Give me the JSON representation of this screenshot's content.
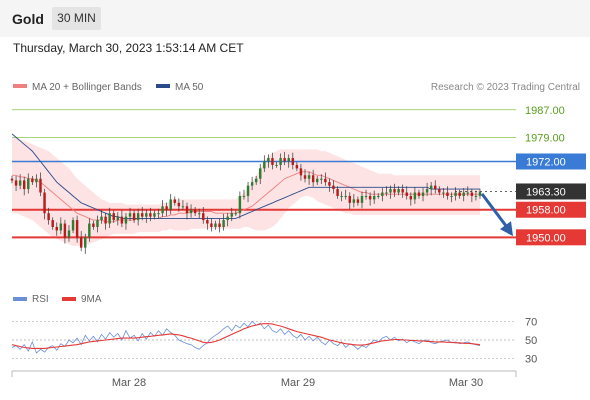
{
  "header": {
    "title": "Gold",
    "timeframe": "30 MIN",
    "datetime": "Thursday, March 30, 2023 1:53:14 AM CET"
  },
  "legend": {
    "ma20": "MA 20 + Bollinger Bands",
    "ma50": "MA 50",
    "research": "Research © 2023 Trading Central"
  },
  "colors": {
    "ma20": "#f08080",
    "ma50": "#2a4a8c",
    "band": "#fde0e0",
    "candle_up": "#2e7d32",
    "candle_down": "#b71c1c",
    "resistance": "#8bc34a",
    "pivot": "#3a7bd5",
    "support": "#e53935",
    "last_price": "#333333",
    "arrow": "#2f5fa6",
    "rsi": "#6a8fd8",
    "rsi_ma": "#e53935"
  },
  "chart_data": [
    {
      "type": "candlestick",
      "ylim": [
        1944,
        1991
      ],
      "x_axis_labels": [
        "Mar 28",
        "Mar 29",
        "Mar 30"
      ],
      "levels": [
        {
          "label": "1987.00",
          "value": 1987.0,
          "kind": "resistance"
        },
        {
          "label": "1979.00",
          "value": 1979.0,
          "kind": "resistance"
        },
        {
          "label": "1972.00",
          "value": 1972.0,
          "kind": "pivot"
        },
        {
          "label": "1963.30",
          "value": 1963.3,
          "kind": "last_price"
        },
        {
          "label": "1958.00",
          "value": 1958.0,
          "kind": "support"
        },
        {
          "label": "1950.00",
          "value": 1950.0,
          "kind": "support"
        }
      ],
      "close": [
        1966.5,
        1965,
        1966.5,
        1964,
        1967,
        1966,
        1967,
        1963,
        1957,
        1955,
        1953,
        1952,
        1954,
        1950,
        1952,
        1955,
        1950,
        1947,
        1950,
        1954,
        1953,
        1955,
        1956,
        1954,
        1957,
        1955,
        1956,
        1954,
        1956,
        1957,
        1955,
        1957,
        1956,
        1957,
        1956,
        1957,
        1957,
        1959,
        1958,
        1961,
        1960,
        1959,
        1959,
        1957,
        1958,
        1957,
        1957,
        1955,
        1954,
        1953,
        1954,
        1953,
        1955,
        1956,
        1957,
        1957,
        1962,
        1962,
        1965,
        1966,
        1967,
        1970,
        1972,
        1973,
        1971,
        1971,
        1973,
        1972,
        1973,
        1971,
        1970,
        1968,
        1967,
        1968,
        1966,
        1967,
        1967,
        1966,
        1965,
        1964,
        1962,
        1962,
        1962,
        1960,
        1961,
        1960,
        1962,
        1962,
        1961,
        1962,
        1962,
        1963,
        1963,
        1964,
        1963,
        1964,
        1963,
        1962,
        1961,
        1963,
        1962,
        1963,
        1964,
        1965,
        1964,
        1963,
        1963,
        1962,
        1962,
        1963,
        1962,
        1963,
        1963,
        1962,
        1962,
        1963.3
      ],
      "ma20": [
        1968,
        1968,
        1967.5,
        1967.5,
        1967,
        1967,
        1966.5,
        1966,
        1965,
        1964,
        1963,
        1962,
        1961,
        1960,
        1959,
        1958,
        1957,
        1956.5,
        1956,
        1955.5,
        1955,
        1955,
        1955,
        1954.5,
        1954.5,
        1954.5,
        1955,
        1955,
        1955,
        1955,
        1955,
        1955.5,
        1955.5,
        1955.5,
        1955.5,
        1955.5,
        1955.5,
        1956,
        1956,
        1956.5,
        1956.5,
        1957,
        1957,
        1957,
        1957.5,
        1957.5,
        1957.5,
        1957.5,
        1957.5,
        1957.5,
        1957,
        1957,
        1957,
        1957,
        1957,
        1957,
        1957.5,
        1958,
        1958.5,
        1959,
        1960,
        1961,
        1962,
        1963,
        1964,
        1965,
        1966,
        1967,
        1967.5,
        1968,
        1968.5,
        1969,
        1969,
        1969,
        1968.5,
        1968,
        1968,
        1967.5,
        1967,
        1966.5,
        1966,
        1965.5,
        1965,
        1964.5,
        1964,
        1963.5,
        1963,
        1963,
        1962.5,
        1962.5,
        1962.5,
        1962.5,
        1962.5,
        1962.5,
        1962.5,
        1962.5,
        1962.5,
        1962.5,
        1962.5,
        1962.5,
        1962.5,
        1962.5,
        1962.5,
        1962.5,
        1962.5,
        1962.5,
        1962.5,
        1962.5,
        1962.5,
        1962.5,
        1962.5,
        1962.5,
        1962.5,
        1962.5,
        1962.5,
        1962.5
      ],
      "bb_upper": [
        1979,
        1979,
        1978.5,
        1978,
        1977.5,
        1977,
        1976.5,
        1976,
        1975.5,
        1975,
        1974,
        1973,
        1972,
        1971,
        1970,
        1968.5,
        1967,
        1966,
        1965,
        1964,
        1963,
        1962,
        1961,
        1960.5,
        1960,
        1960,
        1960,
        1960,
        1959.5,
        1959.5,
        1959.5,
        1959.5,
        1959.5,
        1959.5,
        1959.5,
        1959.5,
        1959.5,
        1960,
        1960,
        1960.5,
        1961,
        1961,
        1961,
        1961,
        1961,
        1961,
        1961,
        1961,
        1961,
        1961,
        1961,
        1961,
        1961,
        1961,
        1961,
        1961,
        1962,
        1963,
        1964,
        1966,
        1968,
        1970,
        1972,
        1973.5,
        1974.5,
        1975,
        1975.5,
        1975.5,
        1975.5,
        1975.5,
        1975.5,
        1975.5,
        1975.5,
        1975.5,
        1975.5,
        1975.5,
        1975,
        1975,
        1974.5,
        1974,
        1973.5,
        1973,
        1972.5,
        1972,
        1971.5,
        1971,
        1970.5,
        1970,
        1969.5,
        1969,
        1968.5,
        1968.5,
        1968.5,
        1968.5,
        1968,
        1968,
        1968,
        1968,
        1968,
        1968,
        1968,
        1968,
        1968,
        1968,
        1968,
        1968,
        1968,
        1968,
        1968,
        1968,
        1968,
        1968,
        1968,
        1968,
        1968,
        1968
      ],
      "bb_lower": [
        1957,
        1957,
        1956.5,
        1956,
        1955.5,
        1955,
        1954,
        1953,
        1952,
        1951,
        1950,
        1949.5,
        1949,
        1948.5,
        1948,
        1947.5,
        1947.5,
        1947.5,
        1948,
        1948,
        1948.5,
        1949,
        1949.5,
        1950,
        1950.5,
        1951,
        1951,
        1951,
        1951,
        1951,
        1951,
        1951.5,
        1951.5,
        1951.5,
        1951.5,
        1951.5,
        1951.5,
        1952,
        1952,
        1952.5,
        1952,
        1952,
        1952,
        1952,
        1952.5,
        1952.5,
        1952.5,
        1952.5,
        1952.5,
        1952.5,
        1952.5,
        1952.5,
        1952.5,
        1952.5,
        1952.5,
        1952.5,
        1952.5,
        1953,
        1953,
        1952.5,
        1952,
        1952,
        1952,
        1952.5,
        1953,
        1954,
        1955.5,
        1957,
        1958.5,
        1959.5,
        1960.5,
        1961.5,
        1962,
        1962,
        1961.5,
        1960.5,
        1960,
        1959.5,
        1959,
        1958.5,
        1958,
        1957.5,
        1957,
        1957,
        1956.5,
        1956.5,
        1956.5,
        1956.5,
        1956.5,
        1956.5,
        1956.5,
        1956.5,
        1956.5,
        1956.5,
        1956.5,
        1956.5,
        1956.5,
        1956.5,
        1956.5,
        1956.5,
        1956.5,
        1956.5,
        1956.5,
        1956.5,
        1956.5,
        1956.5,
        1956.5,
        1956.5,
        1956.5,
        1956.5,
        1956.5,
        1956.5,
        1956.5,
        1956.5,
        1956.5,
        1956.5
      ],
      "ma50": [
        1980,
        1979,
        1978,
        1977,
        1976,
        1975,
        1973.5,
        1972,
        1970.5,
        1969,
        1967.5,
        1966,
        1965,
        1964,
        1963,
        1962,
        1961,
        1960,
        1959.5,
        1959,
        1958.5,
        1958,
        1957.5,
        1957,
        1956.5,
        1956,
        1956,
        1955.5,
        1955.5,
        1955.5,
        1955.5,
        1955.5,
        1955.5,
        1955.5,
        1955.5,
        1955.5,
        1955.5,
        1955.5,
        1955.5,
        1955.5,
        1955.5,
        1955.5,
        1955.5,
        1955.5,
        1955.5,
        1955.5,
        1955.5,
        1955.5,
        1955.5,
        1955.5,
        1955.5,
        1955.5,
        1955.5,
        1955.5,
        1955.5,
        1955.5,
        1956,
        1956.5,
        1957,
        1957.5,
        1958,
        1958.5,
        1959,
        1959.5,
        1960,
        1960.5,
        1961,
        1961.5,
        1962,
        1962.5,
        1963,
        1963.5,
        1964,
        1964.5,
        1964.5,
        1964.5,
        1964.5,
        1964.5,
        1964.5,
        1964.5,
        1964.5,
        1964.5,
        1964.5,
        1964.5,
        1964.5,
        1964.5,
        1964.5,
        1964.5,
        1964.5,
        1964.5,
        1964.5,
        1964.5,
        1964.5,
        1964.5,
        1964.5,
        1964.5,
        1964.5,
        1964.5,
        1964.5,
        1964.5,
        1964.5,
        1964.5,
        1964.5,
        1964,
        1964,
        1964,
        1964,
        1964,
        1964,
        1964,
        1964,
        1964,
        1964,
        1964,
        1964,
        1964
      ]
    },
    {
      "type": "line",
      "series": [
        {
          "name": "RSI",
          "values": [
            42,
            44,
            40,
            45,
            38,
            48,
            36,
            40,
            37,
            42,
            44,
            39,
            46,
            43,
            50,
            47,
            52,
            45,
            55,
            49,
            54,
            48,
            56,
            51,
            58,
            53,
            57,
            50,
            60,
            52,
            55,
            49,
            57,
            51,
            58,
            54,
            60,
            55,
            62,
            58,
            55,
            50,
            48,
            46,
            45,
            42,
            40,
            44,
            47,
            52,
            55,
            58,
            62,
            65,
            60,
            66,
            63,
            68,
            64,
            70,
            66,
            68,
            62,
            66,
            60,
            58,
            62,
            56,
            60,
            55,
            52,
            56,
            50,
            54,
            49,
            53,
            48,
            45,
            50,
            46,
            44,
            48,
            42,
            46,
            44,
            40,
            44,
            42,
            46,
            50,
            48,
            52,
            54,
            50,
            53,
            49,
            51,
            47,
            50,
            48,
            46,
            49,
            50,
            47,
            46,
            48,
            49,
            50,
            47,
            48,
            46,
            47,
            48,
            46,
            45,
            44
          ]
        },
        {
          "name": "9MA",
          "values": [
            45,
            44,
            43,
            42,
            41.5,
            41,
            41,
            41,
            41,
            41.5,
            42,
            42.5,
            43,
            43.5,
            44,
            44.5,
            45,
            46,
            47,
            48,
            48.5,
            49,
            49.5,
            50,
            50.5,
            51,
            51.5,
            52,
            52,
            52,
            52,
            52.5,
            53,
            53.5,
            54,
            54.5,
            55,
            55.5,
            56,
            56.5,
            56,
            55.5,
            54.5,
            53,
            52,
            50.5,
            49,
            47.5,
            47,
            47.5,
            48.5,
            50,
            52,
            54,
            56,
            58,
            60,
            62,
            63.5,
            65,
            66,
            67,
            67.5,
            67.5,
            67,
            66,
            65,
            63.5,
            62,
            60.5,
            59,
            58,
            57,
            56,
            55,
            54,
            53,
            51.5,
            50,
            49,
            48,
            47,
            46,
            45.5,
            45,
            44.5,
            44.5,
            45,
            46,
            47,
            48,
            49,
            49.5,
            50,
            50.5,
            50.5,
            50,
            50,
            49.5,
            49.5,
            49,
            49,
            48.5,
            48.5,
            48,
            48,
            48,
            47.5,
            47.5,
            47,
            47,
            46.5,
            46.5,
            46,
            45.5,
            45
          ]
        }
      ],
      "ylim": [
        20,
        80
      ],
      "y_ticks": [
        "70",
        "50",
        "30"
      ]
    }
  ]
}
